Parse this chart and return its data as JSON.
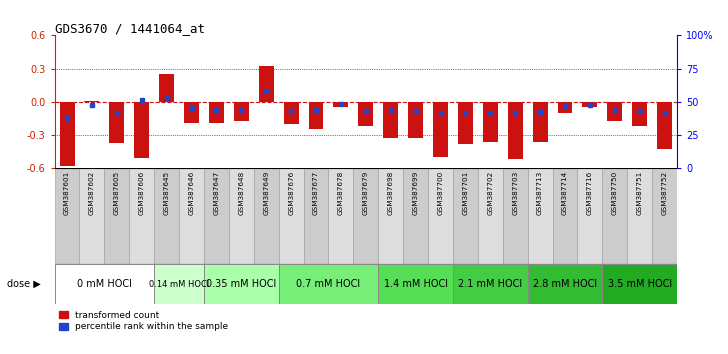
{
  "title": "GDS3670 / 1441064_at",
  "samples": [
    "GSM387601",
    "GSM387602",
    "GSM387605",
    "GSM387606",
    "GSM387645",
    "GSM387646",
    "GSM387647",
    "GSM387648",
    "GSM387649",
    "GSM387676",
    "GSM387677",
    "GSM387678",
    "GSM387679",
    "GSM387698",
    "GSM387699",
    "GSM387700",
    "GSM387701",
    "GSM387702",
    "GSM387703",
    "GSM387713",
    "GSM387714",
    "GSM387716",
    "GSM387750",
    "GSM387751",
    "GSM387752"
  ],
  "red_values": [
    -0.58,
    0.01,
    -0.37,
    -0.51,
    0.25,
    -0.19,
    -0.19,
    -0.17,
    0.32,
    -0.2,
    -0.25,
    -0.05,
    -0.22,
    -0.33,
    -0.33,
    -0.5,
    -0.38,
    -0.36,
    -0.52,
    -0.36,
    -0.1,
    -0.05,
    -0.17,
    -0.22,
    -0.43
  ],
  "blue_values": [
    -0.15,
    -0.03,
    -0.1,
    0.02,
    0.03,
    -0.06,
    -0.07,
    -0.07,
    0.1,
    -0.08,
    -0.07,
    -0.02,
    -0.08,
    -0.07,
    -0.08,
    -0.1,
    -0.1,
    -0.1,
    -0.1,
    -0.09,
    -0.04,
    -0.03,
    -0.07,
    -0.08,
    -0.1
  ],
  "dose_groups": [
    {
      "label": "0 mM HOCl",
      "start": 0,
      "end": 4,
      "color": "#ffffff"
    },
    {
      "label": "0.14 mM HOCl",
      "start": 4,
      "end": 6,
      "color": "#ccffcc"
    },
    {
      "label": "0.35 mM HOCl",
      "start": 6,
      "end": 9,
      "color": "#aaffaa"
    },
    {
      "label": "0.7 mM HOCl",
      "start": 9,
      "end": 13,
      "color": "#77ee77"
    },
    {
      "label": "1.4 mM HOCl",
      "start": 13,
      "end": 16,
      "color": "#55dd55"
    },
    {
      "label": "2.1 mM HOCl",
      "start": 16,
      "end": 19,
      "color": "#44cc44"
    },
    {
      "label": "2.8 mM HOCl",
      "start": 19,
      "end": 22,
      "color": "#33bb33"
    },
    {
      "label": "3.5 mM HOCl",
      "start": 22,
      "end": 25,
      "color": "#22aa22"
    }
  ],
  "ylim": [
    -0.6,
    0.6
  ],
  "yticks": [
    -0.6,
    -0.3,
    0.0,
    0.3,
    0.6
  ],
  "right_ytick_vals": [
    0,
    25,
    50,
    75,
    100
  ],
  "right_yticklabels": [
    "0",
    "25",
    "50",
    "75",
    "100%"
  ],
  "bar_color": "#cc1111",
  "dot_color": "#2244cc",
  "hline_color": "#cc1111",
  "dot_line_color": "#2244cc"
}
